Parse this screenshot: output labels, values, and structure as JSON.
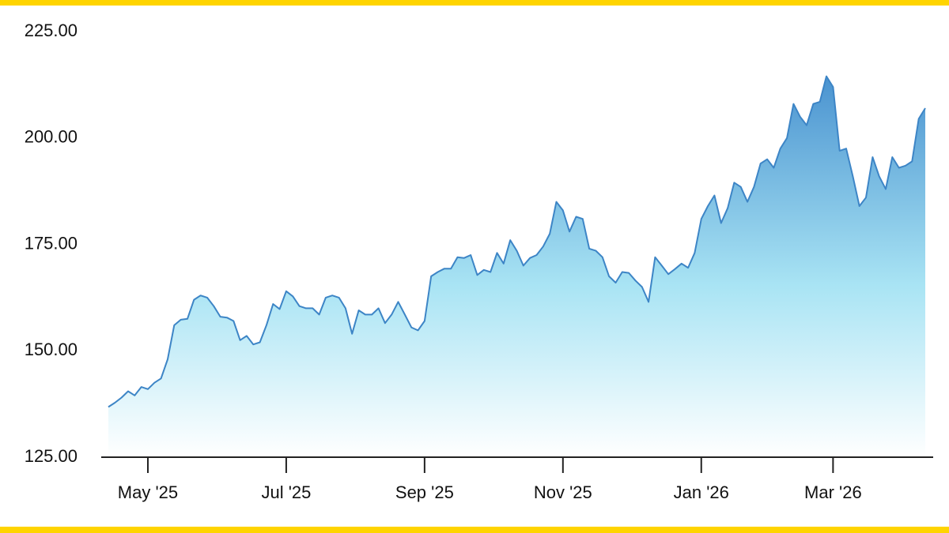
{
  "chart_data": {
    "type": "area",
    "categories": [
      null,
      null,
      null,
      null,
      null,
      null,
      "May '25",
      null,
      null,
      null,
      null,
      null,
      null,
      null,
      null,
      null,
      null,
      null,
      null,
      null,
      null,
      null,
      null,
      null,
      null,
      null,
      null,
      "Jul '25",
      null,
      null,
      null,
      null,
      null,
      null,
      null,
      null,
      null,
      null,
      null,
      null,
      null,
      null,
      null,
      null,
      null,
      null,
      null,
      null,
      "Sep '25",
      null,
      null,
      null,
      null,
      null,
      null,
      null,
      null,
      null,
      null,
      null,
      null,
      null,
      null,
      null,
      null,
      null,
      null,
      null,
      null,
      "Nov '25",
      null,
      null,
      null,
      null,
      null,
      null,
      null,
      null,
      null,
      null,
      null,
      null,
      null,
      null,
      null,
      null,
      null,
      null,
      null,
      null,
      "Jan '26",
      null,
      null,
      null,
      null,
      null,
      null,
      null,
      null,
      null,
      null,
      null,
      null,
      null,
      null,
      null,
      null,
      null,
      null,
      null,
      "Mar '26",
      null,
      null,
      null,
      null,
      null,
      null,
      null,
      null,
      null,
      null,
      null,
      null,
      null,
      null
    ],
    "values": [
      136.8,
      137.8,
      139.0,
      140.5,
      139.5,
      141.5,
      141.0,
      142.5,
      143.5,
      148.0,
      156.0,
      157.3,
      157.5,
      162.0,
      163.0,
      162.5,
      160.5,
      158.0,
      157.8,
      157.0,
      152.5,
      153.5,
      151.5,
      152.0,
      156.0,
      161.0,
      159.8,
      164.0,
      162.8,
      160.5,
      160.0,
      160.0,
      158.5,
      162.5,
      163.0,
      162.5,
      160.0,
      154.0,
      159.5,
      158.5,
      158.5,
      160.0,
      156.5,
      158.5,
      161.5,
      158.5,
      155.5,
      154.8,
      157.0,
      167.5,
      168.5,
      169.3,
      169.3,
      172.0,
      171.8,
      172.5,
      167.8,
      169.0,
      168.5,
      173.0,
      170.5,
      176.0,
      173.5,
      170.0,
      171.8,
      172.5,
      174.5,
      177.5,
      185.0,
      183.0,
      178.0,
      181.5,
      181.0,
      174.0,
      173.5,
      172.0,
      167.5,
      166.0,
      168.5,
      168.3,
      166.5,
      165.0,
      161.5,
      172.0,
      170.0,
      168.0,
      169.2,
      170.5,
      169.5,
      173.0,
      181.0,
      184.0,
      186.5,
      180.0,
      183.5,
      189.5,
      188.5,
      185.0,
      188.5,
      194.0,
      195.0,
      193.0,
      197.5,
      200.0,
      208.0,
      205.0,
      203.0,
      208.0,
      208.5,
      214.5,
      212.0,
      197.0,
      197.5,
      191.0,
      184.0,
      186.0,
      195.5,
      191.0,
      188.0,
      195.5,
      193.0,
      193.5,
      194.5,
      204.5,
      207.0
    ],
    "color": "#3d85c6",
    "fill_gradient": [
      "#4a93d0",
      "#a9e4f4",
      "#ffffff"
    ],
    "ylim": [
      125,
      225
    ],
    "yticks": [
      {
        "value": 125,
        "label": "125.00"
      },
      {
        "value": 150,
        "label": "150.00"
      },
      {
        "value": 175,
        "label": "175.00"
      },
      {
        "value": 200,
        "label": "200.00"
      },
      {
        "value": 225,
        "label": "225.00"
      }
    ],
    "grid": false
  }
}
